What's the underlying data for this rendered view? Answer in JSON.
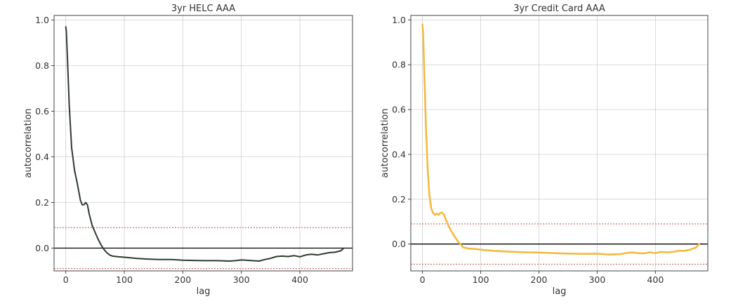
{
  "chart_data": [
    {
      "type": "line",
      "title": "3yr HELC AAA",
      "xlabel": "lag",
      "ylabel": "autocorrelation",
      "xlim": [
        -20,
        490
      ],
      "ylim": [
        -0.1,
        1.02
      ],
      "xticks": [
        "0",
        "100",
        "200",
        "300",
        "400"
      ],
      "xtick_values": [
        0,
        100,
        200,
        300,
        400
      ],
      "yticks": [
        "0.0",
        "0.2",
        "0.4",
        "0.6",
        "0.8",
        "1.0"
      ],
      "ytick_values": [
        0,
        0.2,
        0.4,
        0.6,
        0.8,
        1.0
      ],
      "grid": true,
      "line_color": "#2f3a2f",
      "confidence_bands": [
        0.09,
        -0.09
      ],
      "band_color": "#c0504d",
      "zero_line": 0,
      "x": [
        0,
        1,
        3,
        6,
        10,
        15,
        20,
        25,
        28,
        31,
        34,
        37,
        40,
        45,
        50,
        55,
        60,
        65,
        70,
        75,
        80,
        90,
        100,
        120,
        140,
        160,
        180,
        200,
        220,
        240,
        260,
        280,
        290,
        300,
        320,
        330,
        340,
        350,
        360,
        370,
        380,
        390,
        400,
        410,
        420,
        430,
        440,
        450,
        460,
        470,
        475
      ],
      "y": [
        0.97,
        0.95,
        0.82,
        0.62,
        0.44,
        0.34,
        0.28,
        0.21,
        0.19,
        0.19,
        0.2,
        0.19,
        0.15,
        0.1,
        0.07,
        0.04,
        0.015,
        -0.005,
        -0.02,
        -0.03,
        -0.035,
        -0.038,
        -0.04,
        -0.045,
        -0.048,
        -0.05,
        -0.05,
        -0.053,
        -0.054,
        -0.055,
        -0.055,
        -0.057,
        -0.055,
        -0.052,
        -0.055,
        -0.057,
        -0.05,
        -0.045,
        -0.037,
        -0.035,
        -0.037,
        -0.033,
        -0.038,
        -0.03,
        -0.027,
        -0.03,
        -0.025,
        -0.02,
        -0.018,
        -0.012,
        0.0
      ]
    },
    {
      "type": "line",
      "title": "3yr Credit Card AAA",
      "xlabel": "lag",
      "ylabel": "autocorrelation",
      "xlim": [
        -20,
        490
      ],
      "ylim": [
        -0.12,
        1.02
      ],
      "xticks": [
        "0",
        "100",
        "200",
        "300",
        "400"
      ],
      "xtick_values": [
        0,
        100,
        200,
        300,
        400
      ],
      "yticks": [
        "0.0",
        "0.2",
        "0.4",
        "0.6",
        "0.8",
        "1.0"
      ],
      "ytick_values": [
        0,
        0.2,
        0.4,
        0.6,
        0.8,
        1.0
      ],
      "grid": true,
      "line_color": "#f5b942",
      "confidence_bands": [
        0.09,
        -0.09
      ],
      "band_color": "#c0504d",
      "zero_line": 0,
      "x": [
        0,
        1,
        3,
        6,
        9,
        12,
        15,
        18,
        21,
        25,
        28,
        31,
        34,
        37,
        40,
        45,
        50,
        55,
        60,
        65,
        70,
        80,
        90,
        100,
        120,
        140,
        160,
        180,
        200,
        220,
        240,
        260,
        280,
        300,
        320,
        340,
        350,
        360,
        370,
        380,
        390,
        400,
        410,
        420,
        430,
        440,
        450,
        460,
        470,
        475
      ],
      "y": [
        0.98,
        0.95,
        0.78,
        0.52,
        0.33,
        0.22,
        0.16,
        0.14,
        0.13,
        0.135,
        0.13,
        0.14,
        0.14,
        0.13,
        0.11,
        0.08,
        0.055,
        0.035,
        0.015,
        0.0,
        -0.015,
        -0.02,
        -0.022,
        -0.025,
        -0.03,
        -0.033,
        -0.035,
        -0.037,
        -0.038,
        -0.04,
        -0.042,
        -0.043,
        -0.044,
        -0.043,
        -0.047,
        -0.045,
        -0.04,
        -0.038,
        -0.04,
        -0.042,
        -0.037,
        -0.04,
        -0.035,
        -0.037,
        -0.035,
        -0.03,
        -0.03,
        -0.025,
        -0.015,
        0.0
      ]
    }
  ]
}
